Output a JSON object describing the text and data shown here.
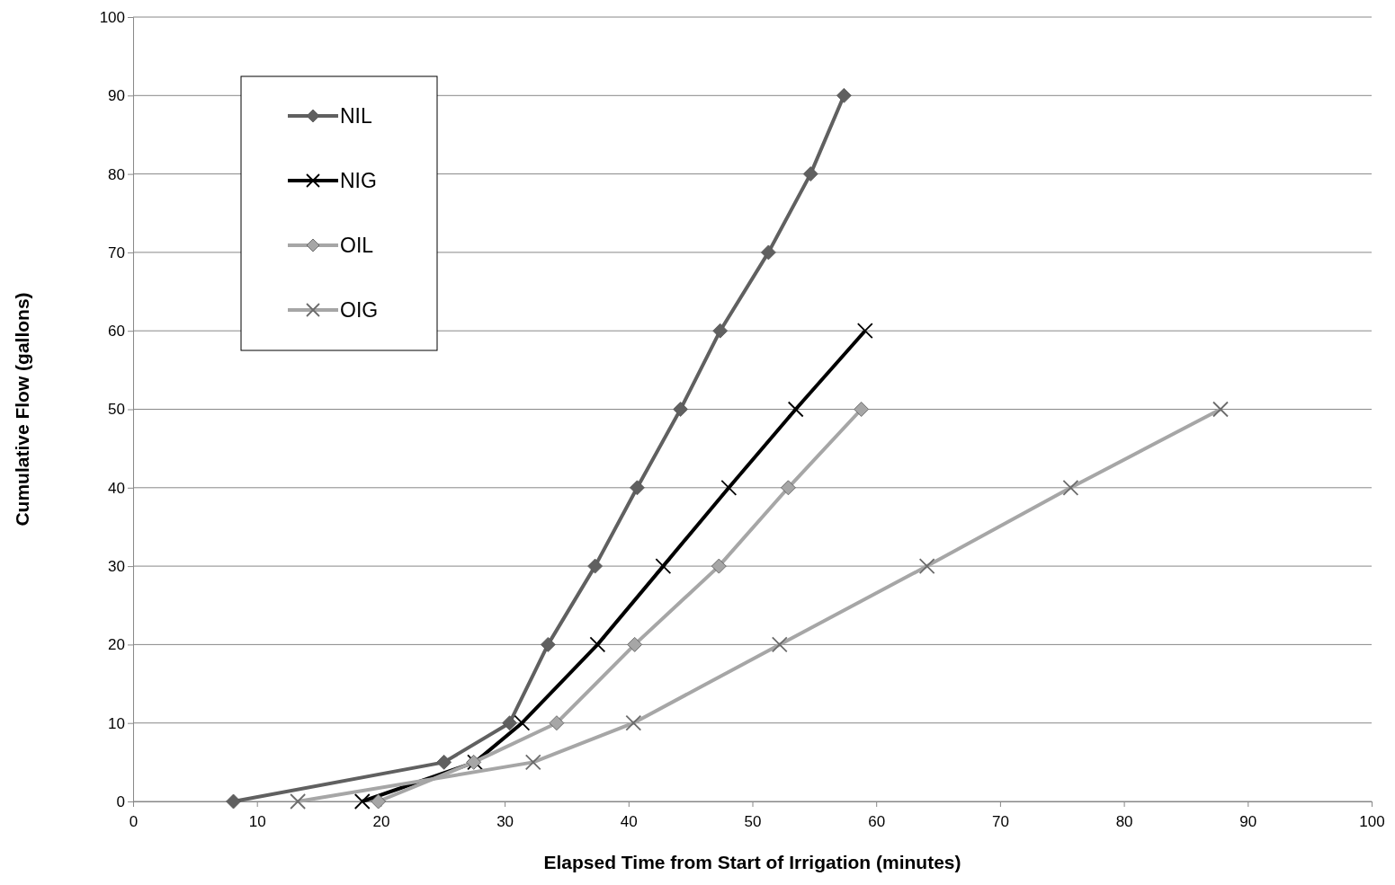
{
  "chart_data": {
    "type": "line",
    "xlabel": "Elapsed Time from Start of Irrigation (minutes)",
    "ylabel": "Cumulative Flow (gallons)",
    "xlim": [
      0,
      100
    ],
    "xticks": [
      0,
      10,
      20,
      30,
      40,
      50,
      60,
      70,
      80,
      90,
      100
    ],
    "ylim": [
      0,
      100
    ],
    "yticks": [
      0,
      10,
      20,
      30,
      40,
      50,
      60,
      70,
      80,
      90,
      100
    ],
    "grid": "y",
    "legend": "top left",
    "series": [
      {
        "name": "NIL",
        "color": "#606060",
        "marker": "diamond",
        "x": [
          8.1,
          25.1,
          30.4,
          33.5,
          37.3,
          40.7,
          44.2,
          47.4,
          51.3,
          54.7,
          57.4
        ],
        "values": [
          0,
          5,
          10,
          20,
          30,
          40,
          50,
          60,
          70,
          80,
          90
        ]
      },
      {
        "name": "NIG",
        "color": "#000000",
        "marker": "cross",
        "x": [
          18.5,
          27.6,
          31.4,
          37.5,
          42.8,
          48.1,
          53.5,
          59.1
        ],
        "values": [
          0,
          5,
          10,
          20,
          30,
          40,
          50,
          60
        ]
      },
      {
        "name": "OIL",
        "color": "#a6a6a6",
        "marker": "diamond",
        "x": [
          19.8,
          27.5,
          34.2,
          40.5,
          47.3,
          52.9,
          58.8
        ],
        "values": [
          0,
          5,
          10,
          20,
          30,
          40,
          50
        ]
      },
      {
        "name": "OIG",
        "color": "#a6a6a6",
        "marker": "cross",
        "x": [
          13.3,
          32.3,
          40.4,
          52.2,
          64.1,
          75.7,
          87.8
        ],
        "values": [
          0,
          5,
          10,
          20,
          30,
          40,
          50
        ]
      }
    ]
  }
}
